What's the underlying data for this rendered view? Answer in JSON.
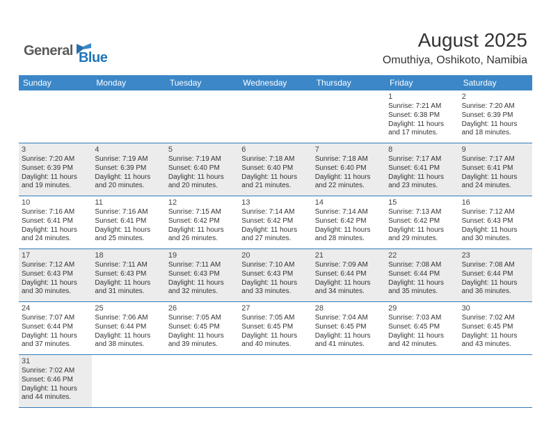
{
  "brand": {
    "part1": "General",
    "part2": "Blue"
  },
  "title": "August 2025",
  "location": "Omuthiya, Oshikoto, Namibia",
  "colors": {
    "header_bg": "#3b87c8",
    "header_text": "#ffffff",
    "row_border": "#2f79b7",
    "shaded_bg": "#ececec",
    "text": "#333333",
    "brand_grey": "#5a5a5a",
    "brand_blue": "#2176b8"
  },
  "day_names": [
    "Sunday",
    "Monday",
    "Tuesday",
    "Wednesday",
    "Thursday",
    "Friday",
    "Saturday"
  ],
  "weeks": [
    [
      {
        "day": null
      },
      {
        "day": null
      },
      {
        "day": null
      },
      {
        "day": null
      },
      {
        "day": null
      },
      {
        "day": "1",
        "sunrise": "Sunrise: 7:21 AM",
        "sunset": "Sunset: 6:38 PM",
        "daylight": "Daylight: 11 hours and 17 minutes."
      },
      {
        "day": "2",
        "sunrise": "Sunrise: 7:20 AM",
        "sunset": "Sunset: 6:39 PM",
        "daylight": "Daylight: 11 hours and 18 minutes."
      }
    ],
    [
      {
        "day": "3",
        "shaded": true,
        "sunrise": "Sunrise: 7:20 AM",
        "sunset": "Sunset: 6:39 PM",
        "daylight": "Daylight: 11 hours and 19 minutes."
      },
      {
        "day": "4",
        "shaded": true,
        "sunrise": "Sunrise: 7:19 AM",
        "sunset": "Sunset: 6:39 PM",
        "daylight": "Daylight: 11 hours and 20 minutes."
      },
      {
        "day": "5",
        "shaded": true,
        "sunrise": "Sunrise: 7:19 AM",
        "sunset": "Sunset: 6:40 PM",
        "daylight": "Daylight: 11 hours and 20 minutes."
      },
      {
        "day": "6",
        "shaded": true,
        "sunrise": "Sunrise: 7:18 AM",
        "sunset": "Sunset: 6:40 PM",
        "daylight": "Daylight: 11 hours and 21 minutes."
      },
      {
        "day": "7",
        "shaded": true,
        "sunrise": "Sunrise: 7:18 AM",
        "sunset": "Sunset: 6:40 PM",
        "daylight": "Daylight: 11 hours and 22 minutes."
      },
      {
        "day": "8",
        "shaded": true,
        "sunrise": "Sunrise: 7:17 AM",
        "sunset": "Sunset: 6:41 PM",
        "daylight": "Daylight: 11 hours and 23 minutes."
      },
      {
        "day": "9",
        "shaded": true,
        "sunrise": "Sunrise: 7:17 AM",
        "sunset": "Sunset: 6:41 PM",
        "daylight": "Daylight: 11 hours and 24 minutes."
      }
    ],
    [
      {
        "day": "10",
        "sunrise": "Sunrise: 7:16 AM",
        "sunset": "Sunset: 6:41 PM",
        "daylight": "Daylight: 11 hours and 24 minutes."
      },
      {
        "day": "11",
        "sunrise": "Sunrise: 7:16 AM",
        "sunset": "Sunset: 6:41 PM",
        "daylight": "Daylight: 11 hours and 25 minutes."
      },
      {
        "day": "12",
        "sunrise": "Sunrise: 7:15 AM",
        "sunset": "Sunset: 6:42 PM",
        "daylight": "Daylight: 11 hours and 26 minutes."
      },
      {
        "day": "13",
        "sunrise": "Sunrise: 7:14 AM",
        "sunset": "Sunset: 6:42 PM",
        "daylight": "Daylight: 11 hours and 27 minutes."
      },
      {
        "day": "14",
        "sunrise": "Sunrise: 7:14 AM",
        "sunset": "Sunset: 6:42 PM",
        "daylight": "Daylight: 11 hours and 28 minutes."
      },
      {
        "day": "15",
        "sunrise": "Sunrise: 7:13 AM",
        "sunset": "Sunset: 6:42 PM",
        "daylight": "Daylight: 11 hours and 29 minutes."
      },
      {
        "day": "16",
        "sunrise": "Sunrise: 7:12 AM",
        "sunset": "Sunset: 6:43 PM",
        "daylight": "Daylight: 11 hours and 30 minutes."
      }
    ],
    [
      {
        "day": "17",
        "shaded": true,
        "sunrise": "Sunrise: 7:12 AM",
        "sunset": "Sunset: 6:43 PM",
        "daylight": "Daylight: 11 hours and 30 minutes."
      },
      {
        "day": "18",
        "shaded": true,
        "sunrise": "Sunrise: 7:11 AM",
        "sunset": "Sunset: 6:43 PM",
        "daylight": "Daylight: 11 hours and 31 minutes."
      },
      {
        "day": "19",
        "shaded": true,
        "sunrise": "Sunrise: 7:11 AM",
        "sunset": "Sunset: 6:43 PM",
        "daylight": "Daylight: 11 hours and 32 minutes."
      },
      {
        "day": "20",
        "shaded": true,
        "sunrise": "Sunrise: 7:10 AM",
        "sunset": "Sunset: 6:43 PM",
        "daylight": "Daylight: 11 hours and 33 minutes."
      },
      {
        "day": "21",
        "shaded": true,
        "sunrise": "Sunrise: 7:09 AM",
        "sunset": "Sunset: 6:44 PM",
        "daylight": "Daylight: 11 hours and 34 minutes."
      },
      {
        "day": "22",
        "shaded": true,
        "sunrise": "Sunrise: 7:08 AM",
        "sunset": "Sunset: 6:44 PM",
        "daylight": "Daylight: 11 hours and 35 minutes."
      },
      {
        "day": "23",
        "shaded": true,
        "sunrise": "Sunrise: 7:08 AM",
        "sunset": "Sunset: 6:44 PM",
        "daylight": "Daylight: 11 hours and 36 minutes."
      }
    ],
    [
      {
        "day": "24",
        "sunrise": "Sunrise: 7:07 AM",
        "sunset": "Sunset: 6:44 PM",
        "daylight": "Daylight: 11 hours and 37 minutes."
      },
      {
        "day": "25",
        "sunrise": "Sunrise: 7:06 AM",
        "sunset": "Sunset: 6:44 PM",
        "daylight": "Daylight: 11 hours and 38 minutes."
      },
      {
        "day": "26",
        "sunrise": "Sunrise: 7:05 AM",
        "sunset": "Sunset: 6:45 PM",
        "daylight": "Daylight: 11 hours and 39 minutes."
      },
      {
        "day": "27",
        "sunrise": "Sunrise: 7:05 AM",
        "sunset": "Sunset: 6:45 PM",
        "daylight": "Daylight: 11 hours and 40 minutes."
      },
      {
        "day": "28",
        "sunrise": "Sunrise: 7:04 AM",
        "sunset": "Sunset: 6:45 PM",
        "daylight": "Daylight: 11 hours and 41 minutes."
      },
      {
        "day": "29",
        "sunrise": "Sunrise: 7:03 AM",
        "sunset": "Sunset: 6:45 PM",
        "daylight": "Daylight: 11 hours and 42 minutes."
      },
      {
        "day": "30",
        "sunrise": "Sunrise: 7:02 AM",
        "sunset": "Sunset: 6:45 PM",
        "daylight": "Daylight: 11 hours and 43 minutes."
      }
    ],
    [
      {
        "day": "31",
        "shaded": true,
        "sunrise": "Sunrise: 7:02 AM",
        "sunset": "Sunset: 6:46 PM",
        "daylight": "Daylight: 11 hours and 44 minutes."
      },
      {
        "day": null
      },
      {
        "day": null
      },
      {
        "day": null
      },
      {
        "day": null
      },
      {
        "day": null
      },
      {
        "day": null
      }
    ]
  ]
}
